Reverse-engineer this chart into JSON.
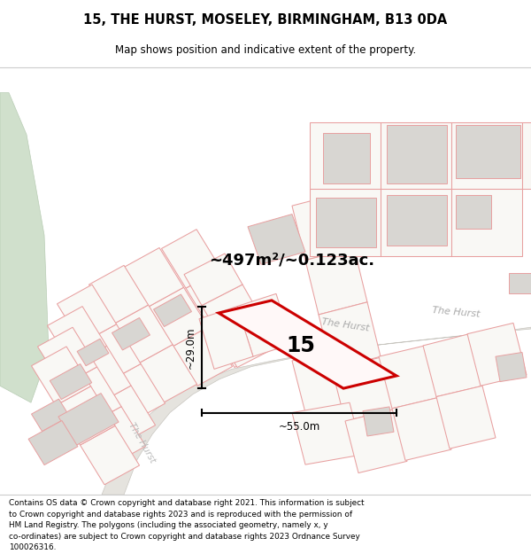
{
  "title": "15, THE HURST, MOSELEY, BIRMINGHAM, B13 0DA",
  "subtitle": "Map shows position and indicative extent of the property.",
  "footer": "Contains OS data © Crown copyright and database right 2021. This information is subject\nto Crown copyright and database rights 2023 and is reproduced with the permission of\nHM Land Registry. The polygons (including the associated geometry, namely x, y\nco-ordinates) are subject to Crown copyright and database rights 2023 Ordnance Survey\n100026316.",
  "map_bg": "#f9f8f5",
  "plot_line_color": "#e8a0a0",
  "highlight_color": "#cc0000",
  "green_color": "#d0e0cc",
  "road_color": "#e5e3de",
  "road_edge_color": "#c8c6c0",
  "building_color": "#d8d6d2",
  "area_text": "~497m²/~0.123ac.",
  "number_text": "15",
  "dim_width": "~55.0m",
  "dim_height": "~29.0m",
  "street_label_road1": "The Hurst",
  "street_label_road2": "The Hurst",
  "street_label_side": "The Hurst",
  "title_fontsize": 10.5,
  "subtitle_fontsize": 8.5,
  "footer_fontsize": 6.4
}
